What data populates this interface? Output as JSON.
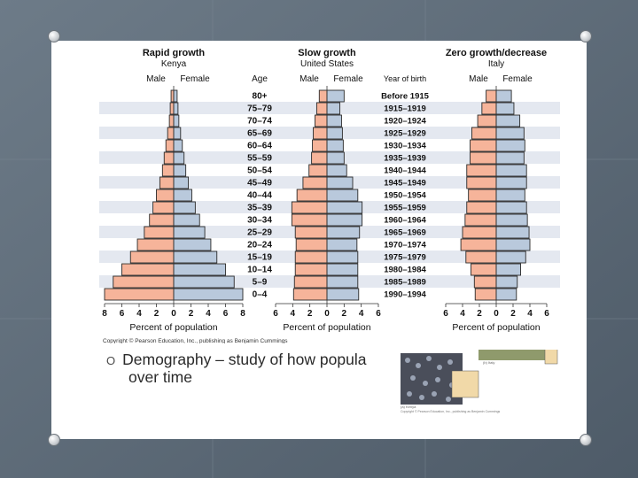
{
  "slide": {
    "bullet_marker": "O",
    "bullet_text_line1": "Demography – study of how popula",
    "bullet_text_line2": "over time"
  },
  "figure": {
    "copyright": "Copyright © Pearson Education, Inc., publishing as Benjamin Cummings",
    "age_header": "Age",
    "year_header": "Year of birth",
    "male_label": "Male",
    "female_label": "Female",
    "age_groups": [
      "80+",
      "75–79",
      "70–74",
      "65–69",
      "60–64",
      "55–59",
      "50–54",
      "45–49",
      "40–44",
      "35–39",
      "30–34",
      "25–29",
      "20–24",
      "15–19",
      "10–14",
      "5–9",
      "0–4"
    ],
    "birth_years": [
      "Before 1915",
      "1915–1919",
      "1920–1924",
      "1925–1929",
      "1930–1934",
      "1935–1939",
      "1940–1944",
      "1945–1949",
      "1950–1954",
      "1955–1959",
      "1960–1964",
      "1965–1969",
      "1970–1974",
      "1975–1979",
      "1980–1984",
      "1985–1989",
      "1990–1994"
    ]
  },
  "photo": {
    "caption1": "(a) Kenya",
    "caption2": "(b) Italy",
    "caption3": "Copyright © Pearson Education, Inc., publishing as Benjamin Cummings"
  },
  "colors": {
    "male": "#f6b49a",
    "female": "#b9c9dc",
    "stripe": "#e4e8f0",
    "outline": "#2a2a2a"
  },
  "chart_data": [
    {
      "type": "bar",
      "title": "Rapid growth",
      "subtitle": "Kenya",
      "xlabel": "Percent of population",
      "xticks": [
        "8",
        "6",
        "4",
        "2",
        "0",
        "2",
        "4",
        "6",
        "8"
      ],
      "xlim": [
        -8,
        8
      ],
      "categories": [
        "80+",
        "75–79",
        "70–74",
        "65–69",
        "60–64",
        "55–59",
        "50–54",
        "45–49",
        "40–44",
        "35–39",
        "30–34",
        "25–29",
        "20–24",
        "15–19",
        "10–14",
        "5–9",
        "0–4"
      ],
      "series": [
        {
          "name": "Male",
          "values": [
            0.3,
            0.4,
            0.5,
            0.7,
            0.9,
            1.1,
            1.3,
            1.6,
            2.0,
            2.4,
            2.8,
            3.4,
            4.2,
            5.0,
            6.0,
            7.0,
            8.0
          ]
        },
        {
          "name": "Female",
          "values": [
            0.4,
            0.5,
            0.6,
            0.8,
            1.0,
            1.2,
            1.4,
            1.7,
            2.1,
            2.5,
            3.0,
            3.6,
            4.3,
            5.0,
            6.0,
            7.0,
            8.0
          ]
        }
      ]
    },
    {
      "type": "bar",
      "title": "Slow growth",
      "subtitle": "United States",
      "xlabel": "Percent of population",
      "xticks": [
        "6",
        "4",
        "2",
        "0",
        "2",
        "4",
        "6"
      ],
      "xlim": [
        -6,
        6
      ],
      "categories": [
        "80+",
        "75–79",
        "70–74",
        "65–69",
        "60–64",
        "55–59",
        "50–54",
        "45–49",
        "40–44",
        "35–39",
        "30–34",
        "25–29",
        "20–24",
        "15–19",
        "10–14",
        "5–9",
        "0–4"
      ],
      "series": [
        {
          "name": "Male",
          "values": [
            0.9,
            1.2,
            1.4,
            1.6,
            1.7,
            1.8,
            2.1,
            2.8,
            3.5,
            4.1,
            4.1,
            3.7,
            3.6,
            3.7,
            3.7,
            3.8,
            3.9
          ]
        },
        {
          "name": "Female",
          "values": [
            2.0,
            1.5,
            1.7,
            1.8,
            1.9,
            2.0,
            2.3,
            3.0,
            3.6,
            4.1,
            4.1,
            3.8,
            3.5,
            3.6,
            3.6,
            3.6,
            3.7
          ]
        }
      ]
    },
    {
      "type": "bar",
      "title": "Zero growth/decrease",
      "subtitle": "Italy",
      "xlabel": "Percent of population",
      "xticks": [
        "6",
        "4",
        "2",
        "0",
        "2",
        "4",
        "6"
      ],
      "xlim": [
        -6,
        6
      ],
      "categories": [
        "80+",
        "75–79",
        "70–74",
        "65–69",
        "60–64",
        "55–59",
        "50–54",
        "45–49",
        "40–44",
        "35–39",
        "30–34",
        "25–29",
        "20–24",
        "15–19",
        "10–14",
        "5–9",
        "0–4"
      ],
      "series": [
        {
          "name": "Male",
          "values": [
            1.2,
            1.7,
            2.2,
            2.9,
            3.1,
            3.1,
            3.5,
            3.5,
            3.3,
            3.5,
            3.7,
            4.0,
            4.2,
            3.6,
            3.0,
            2.6,
            2.5
          ]
        },
        {
          "name": "Female",
          "values": [
            1.8,
            2.1,
            2.8,
            3.3,
            3.4,
            3.3,
            3.6,
            3.6,
            3.4,
            3.6,
            3.7,
            3.9,
            4.0,
            3.5,
            2.9,
            2.5,
            2.4
          ]
        }
      ]
    }
  ]
}
